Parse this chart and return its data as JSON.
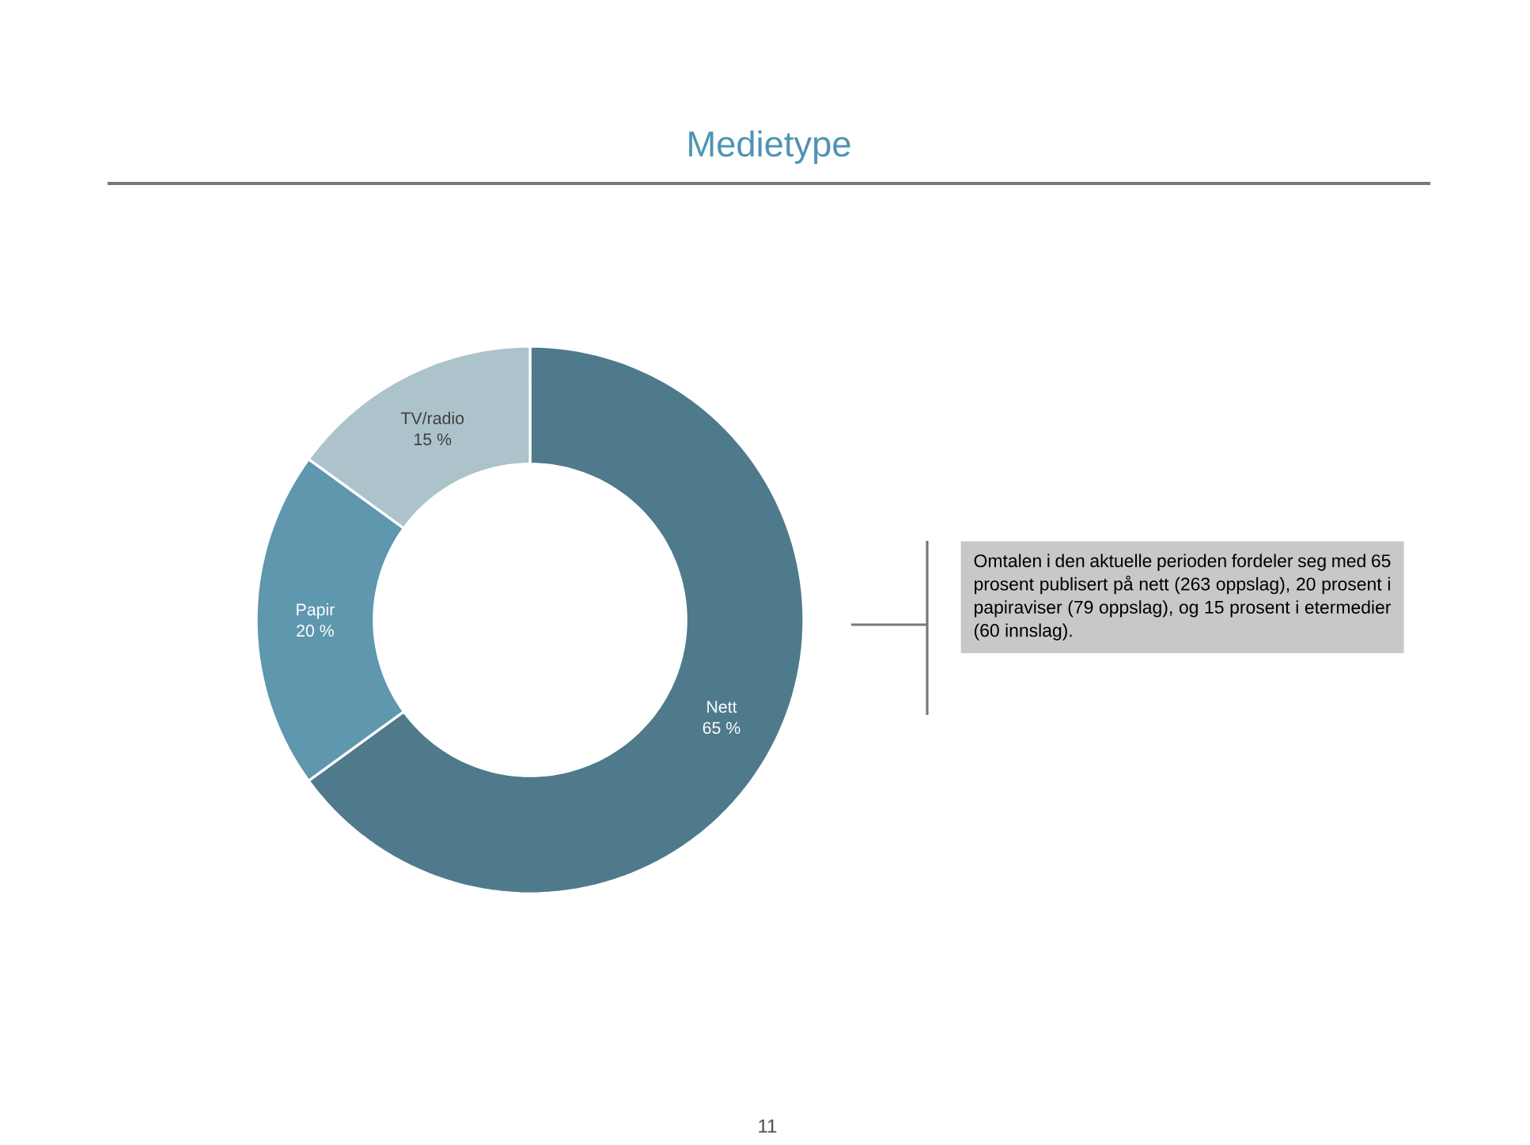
{
  "chart_data": {
    "type": "donut",
    "title": "Medietype",
    "categories": [
      "Nett",
      "Papir",
      "TV/radio"
    ],
    "values": [
      65,
      20,
      15
    ],
    "colors": [
      "#4e7a8c",
      "#5e97ae",
      "#adc3cc"
    ],
    "value_labels": [
      "65 %",
      "20 %",
      "15 %"
    ],
    "annotations": [
      "Omtalen i den aktuelle perioden fordeler seg med 65 prosent publisert på nett (263 oppslag), 20 prosent i papiraviser (79 oppslag), og 15 prosent i etermedier (60 innslag).",
      "11"
    ]
  }
}
